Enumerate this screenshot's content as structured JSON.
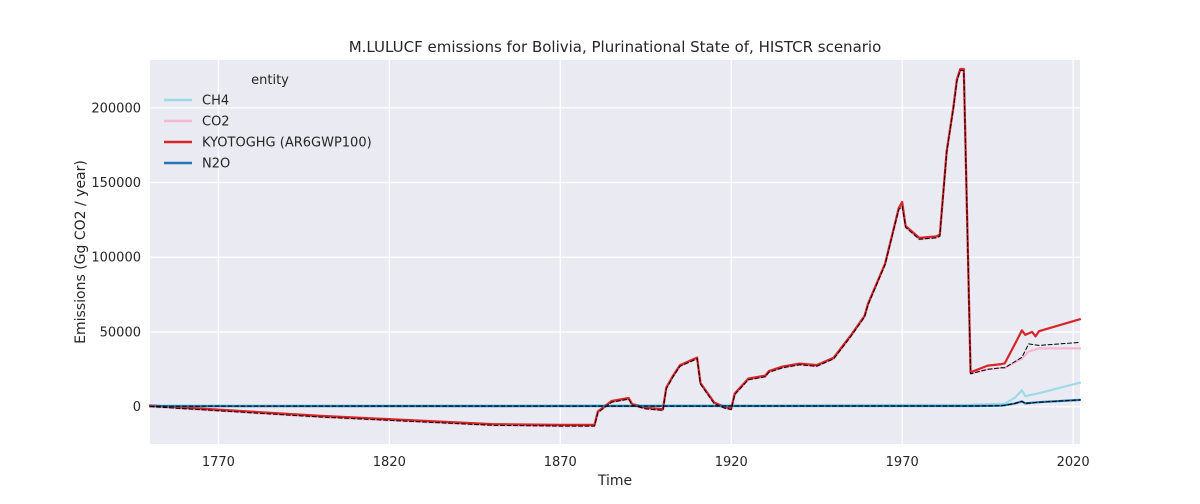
{
  "chart_data": {
    "type": "line",
    "title": "M.LULUCF emissions for Bolivia, Plurinational State of, HISTCR scenario",
    "xlabel": "Time",
    "ylabel": "Emissions (Gg CO2 / year)",
    "xlim": [
      1750,
      2022
    ],
    "ylim": [
      -25000,
      232000
    ],
    "xticks": [
      1770,
      1820,
      1870,
      1920,
      1970,
      2020
    ],
    "yticks": [
      0,
      50000,
      100000,
      150000,
      200000
    ],
    "grid": true,
    "legend": {
      "title": "entity",
      "placement": "top-left"
    },
    "series": [
      {
        "name": "CH4",
        "color": "#9edae5",
        "width": 2.2,
        "x": [
          1750,
          1990,
          1995,
          2000,
          2003,
          2005,
          2006,
          2010,
          2022
        ],
        "y": [
          800,
          1200,
          1500,
          2000,
          6000,
          11000,
          7000,
          9000,
          16000
        ]
      },
      {
        "name": "CO2",
        "color": "#f7b6d2",
        "width": 2.2,
        "x": [
          1750,
          1800,
          1850,
          1870,
          1880,
          1881,
          1885,
          1890,
          1891,
          1895,
          1900,
          1901,
          1903,
          1905,
          1909,
          1910,
          1911,
          1915,
          1918,
          1920,
          1921,
          1925,
          1930,
          1931,
          1935,
          1940,
          1945,
          1949,
          1950,
          1955,
          1959,
          1960,
          1965,
          1969,
          1970,
          1971,
          1975,
          1980,
          1981,
          1983,
          1985,
          1986,
          1987,
          1988,
          1990,
          1995,
          1999,
          2000,
          2005,
          2007,
          2010,
          2022
        ],
        "y": [
          0,
          -7000,
          -12500,
          -13000,
          -13000,
          -4000,
          3000,
          5000,
          1000,
          -1500,
          -2500,
          12000,
          20000,
          27000,
          31000,
          32000,
          15000,
          2000,
          -1000,
          -2000,
          8000,
          18000,
          20000,
          23000,
          26000,
          28000,
          27000,
          31000,
          32000,
          47000,
          60000,
          68000,
          95000,
          132000,
          134000,
          120000,
          112000,
          113000,
          114000,
          170000,
          200000,
          218000,
          225000,
          225000,
          22000,
          25000,
          26000,
          26000,
          32000,
          37000,
          39000,
          39000
        ]
      },
      {
        "name": "KYOTOGHG (AR6GWP100)",
        "color": "#d62728",
        "width": 2.2,
        "x": [
          1750,
          1800,
          1850,
          1870,
          1880,
          1881,
          1885,
          1890,
          1891,
          1895,
          1900,
          1901,
          1903,
          1905,
          1909,
          1910,
          1911,
          1915,
          1918,
          1920,
          1921,
          1925,
          1930,
          1931,
          1935,
          1940,
          1945,
          1949,
          1950,
          1955,
          1959,
          1960,
          1965,
          1969,
          1970,
          1971,
          1975,
          1980,
          1981,
          1983,
          1985,
          1986,
          1987,
          1988,
          1990,
          1995,
          1999,
          2000,
          2003,
          2005,
          2006,
          2008,
          2009,
          2010,
          2022
        ],
        "y": [
          800,
          -6200,
          -11700,
          -12200,
          -12200,
          -3200,
          3800,
          5800,
          1800,
          -700,
          -1700,
          12800,
          20800,
          27800,
          31800,
          32800,
          15800,
          2800,
          -200,
          -1200,
          8800,
          18800,
          20800,
          23800,
          26800,
          28800,
          27800,
          31800,
          32800,
          47800,
          60800,
          68800,
          95800,
          133000,
          137000,
          121000,
          113000,
          114000,
          115000,
          171000,
          201000,
          219000,
          226000,
          226000,
          23000,
          27500,
          28500,
          29000,
          42000,
          51000,
          48000,
          50000,
          47000,
          50500,
          58500
        ]
      },
      {
        "name": "N2O",
        "color": "#1f77b4",
        "width": 2.2,
        "x": [
          1750,
          1990,
          1995,
          1999,
          2000,
          2003,
          2005,
          2006,
          2010,
          2022
        ],
        "y": [
          300,
          400,
          500,
          600,
          900,
          2200,
          3500,
          2200,
          3000,
          4500
        ]
      },
      {
        "name": "",
        "color": "#000000",
        "width": 1.0,
        "dashed": true,
        "x": [
          1750,
          1800,
          1850,
          1870,
          1880,
          1881,
          1885,
          1890,
          1891,
          1895,
          1900,
          1901,
          1903,
          1905,
          1909,
          1910,
          1911,
          1915,
          1918,
          1920,
          1921,
          1925,
          1930,
          1931,
          1935,
          1940,
          1945,
          1949,
          1950,
          1955,
          1959,
          1960,
          1965,
          1969,
          1970,
          1971,
          1975,
          1980,
          1981,
          1983,
          1985,
          1986,
          1987,
          1988,
          1990,
          1995,
          1999,
          2000,
          2005,
          2007,
          2010,
          2022
        ],
        "y": [
          0,
          -7000,
          -12500,
          -13000,
          -13000,
          -4000,
          3000,
          5000,
          1000,
          -1500,
          -2500,
          12000,
          20000,
          27000,
          31000,
          32000,
          15000,
          2000,
          -1000,
          -2000,
          8000,
          18000,
          20000,
          23000,
          26000,
          28000,
          27000,
          31000,
          32000,
          47000,
          60000,
          68000,
          95000,
          132000,
          134000,
          120000,
          112000,
          113000,
          114000,
          170000,
          200000,
          218000,
          225000,
          225000,
          22000,
          25000,
          26000,
          26000,
          33000,
          42000,
          41000,
          43000
        ]
      },
      {
        "name": "",
        "color": "#000000",
        "width": 1.0,
        "dashed": true,
        "x": [
          1750,
          1990,
          1995,
          1999,
          2000,
          2003,
          2005,
          2006,
          2010,
          2022
        ],
        "y": [
          300,
          400,
          500,
          600,
          900,
          2200,
          3500,
          2200,
          3000,
          4500
        ]
      }
    ]
  }
}
